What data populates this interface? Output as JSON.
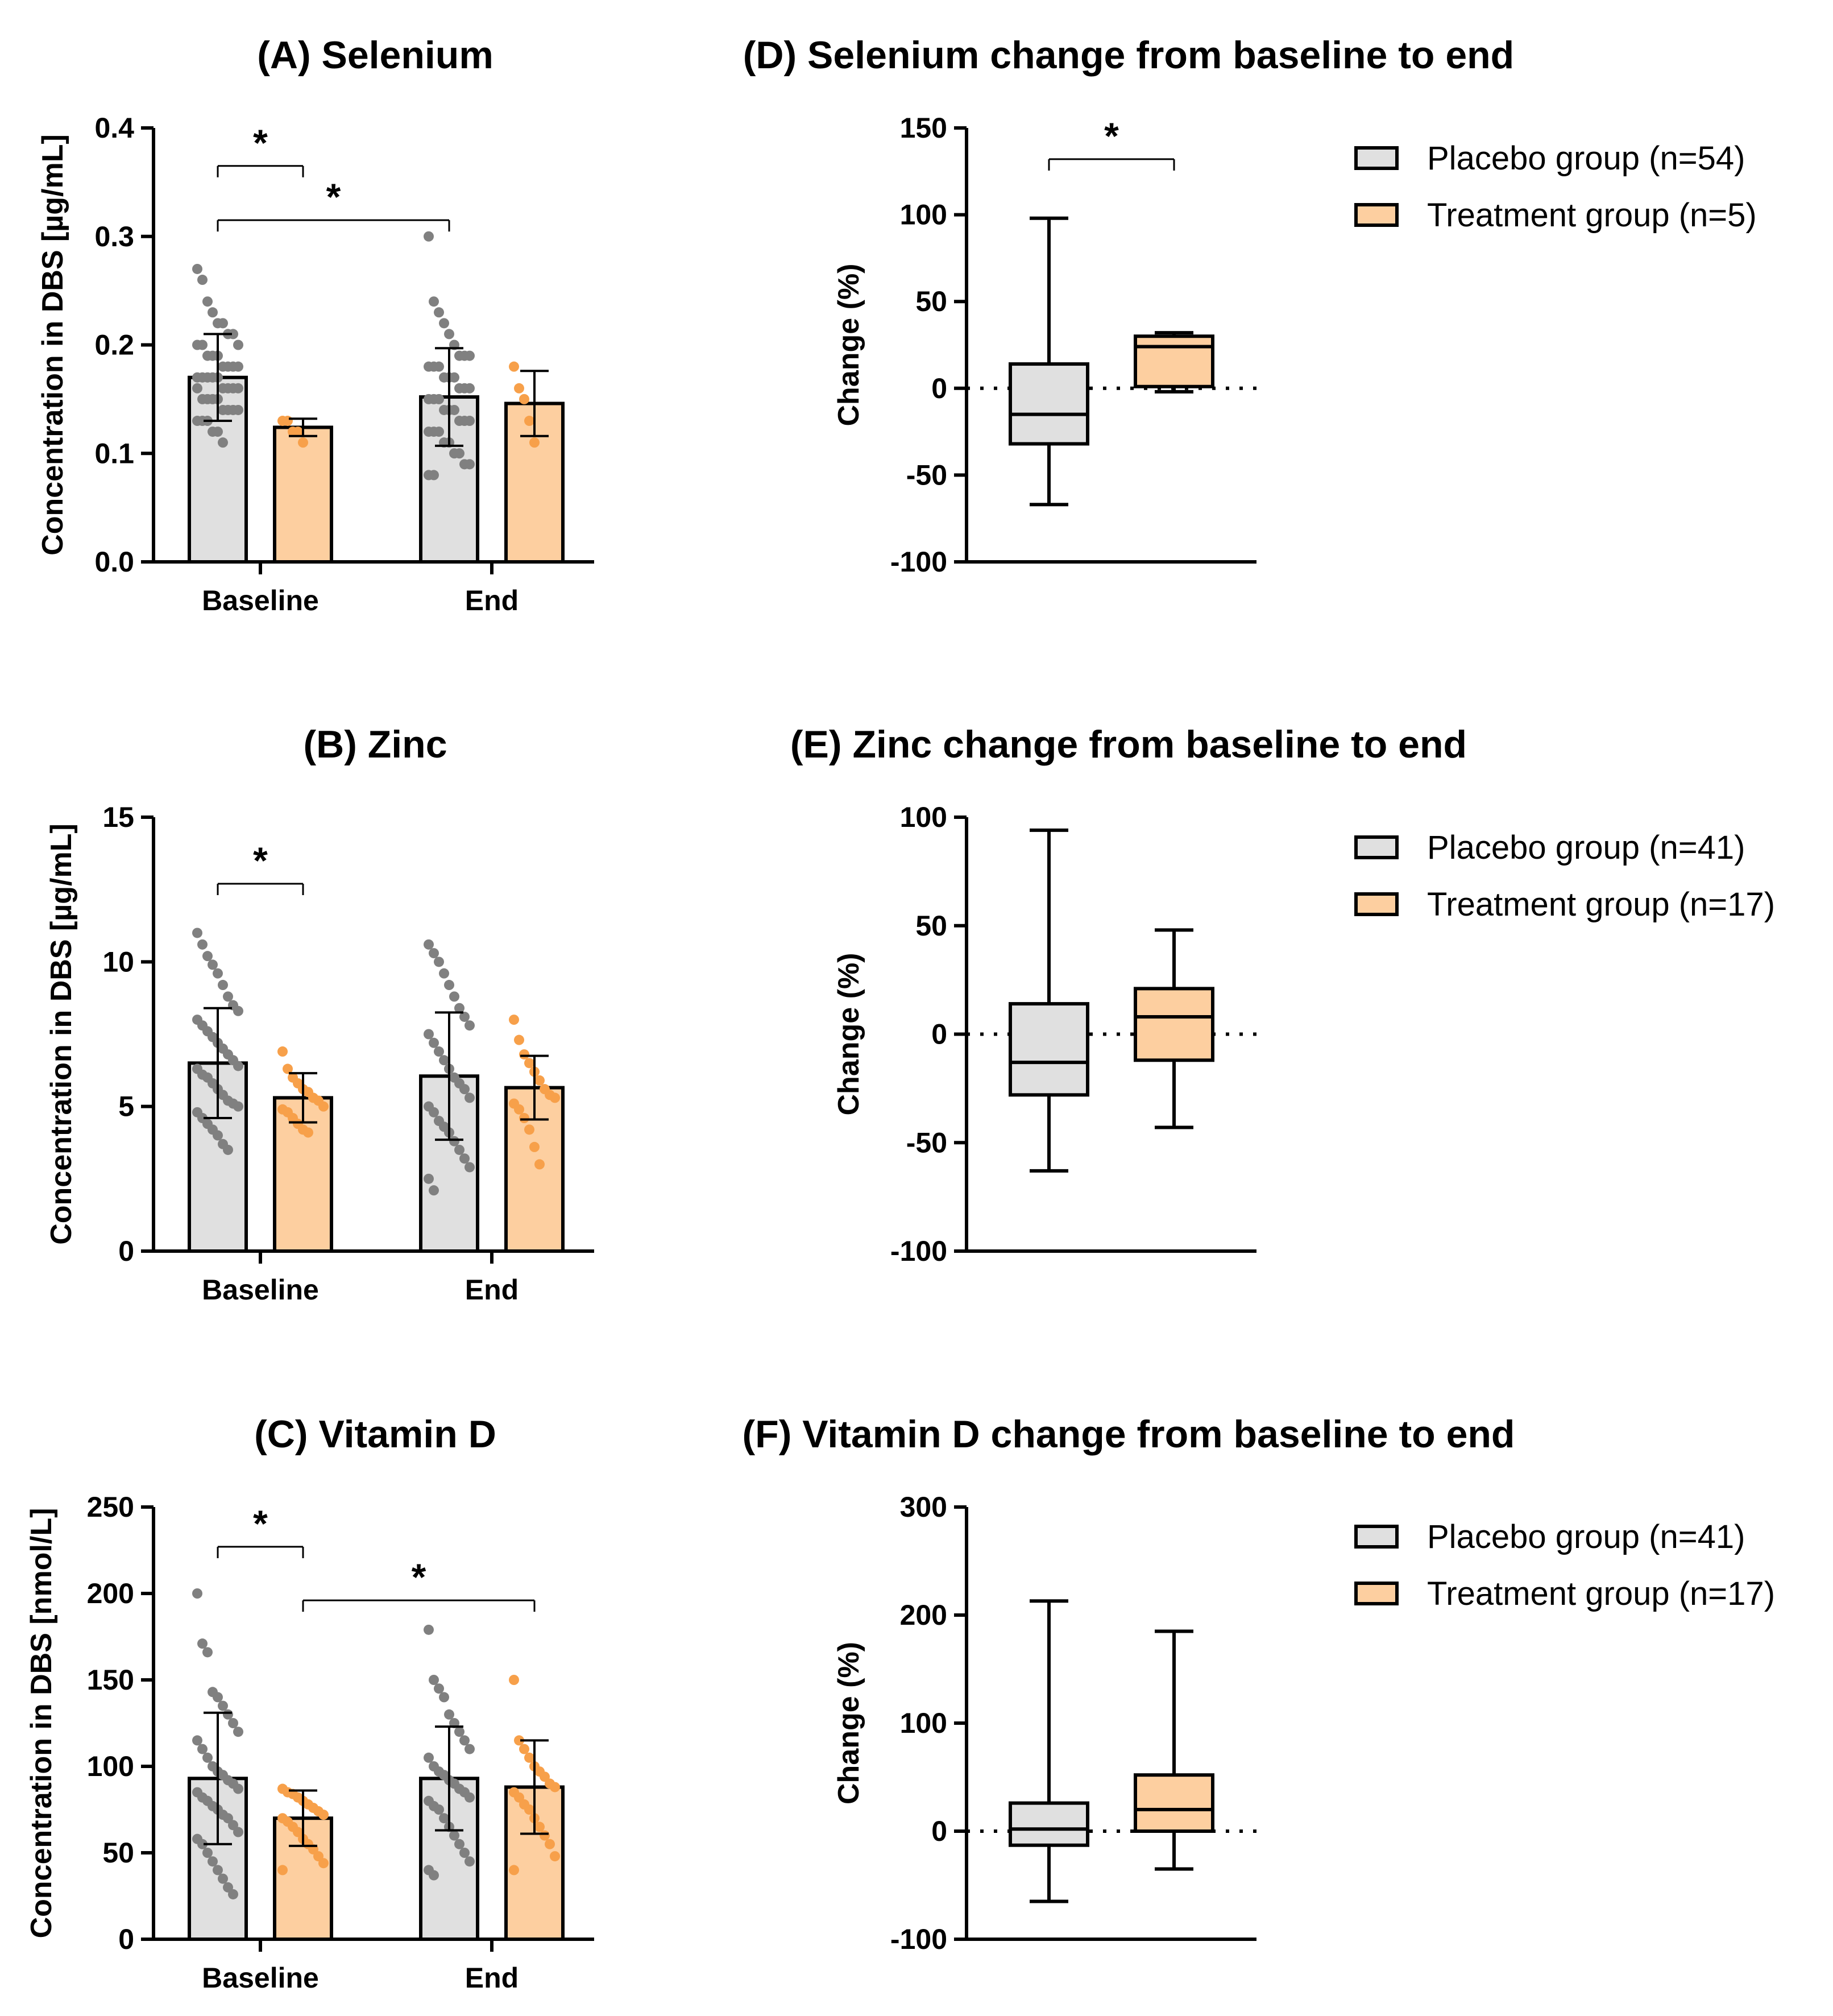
{
  "colors": {
    "placebo": "#e0e0e0",
    "treatment": "#fdcfa0",
    "placebo_dot": "#808080",
    "treatment_dot": "#f7a04a",
    "stroke": "#000000"
  },
  "chart_data": [
    {
      "id": "A",
      "type": "bar",
      "title": "(A) Selenium",
      "ylabel": "Concentration in  DBS [µg/mL]",
      "categories": [
        "Baseline",
        "End"
      ],
      "ylim": [
        0,
        0.4
      ],
      "yticks": [
        0.0,
        0.1,
        0.2,
        0.3,
        0.4
      ],
      "ytick_labels": [
        "0.0",
        "0.1",
        "0.2",
        "0.3",
        "0.4"
      ],
      "series": [
        {
          "name": "Placebo group",
          "values": [
            0.17,
            0.152
          ],
          "sd": [
            0.04,
            0.045
          ],
          "points": [
            [
              0.27,
              0.26,
              0.24,
              0.23,
              0.22,
              0.22,
              0.21,
              0.21,
              0.2,
              0.2,
              0.2,
              0.19,
              0.19,
              0.19,
              0.18,
              0.18,
              0.18,
              0.18,
              0.17,
              0.17,
              0.17,
              0.17,
              0.17,
              0.16,
              0.16,
              0.16,
              0.16,
              0.16,
              0.15,
              0.15,
              0.15,
              0.15,
              0.14,
              0.14,
              0.14,
              0.14,
              0.13,
              0.13,
              0.13,
              0.12,
              0.12,
              0.11
            ],
            [
              0.3,
              0.24,
              0.23,
              0.22,
              0.21,
              0.2,
              0.19,
              0.19,
              0.19,
              0.18,
              0.18,
              0.18,
              0.17,
              0.17,
              0.17,
              0.16,
              0.16,
              0.16,
              0.15,
              0.15,
              0.15,
              0.14,
              0.14,
              0.14,
              0.13,
              0.13,
              0.13,
              0.12,
              0.12,
              0.12,
              0.11,
              0.11,
              0.1,
              0.1,
              0.09,
              0.09,
              0.08,
              0.08
            ]
          ]
        },
        {
          "name": "Treatment group",
          "values": [
            0.124,
            0.146
          ],
          "sd": [
            0.008,
            0.03
          ],
          "points": [
            [
              0.13,
              0.13,
              0.12,
              0.12,
              0.11
            ],
            [
              0.18,
              0.16,
              0.15,
              0.13,
              0.11
            ]
          ]
        }
      ],
      "significance": [
        {
          "label": "*",
          "from": [
            0,
            0
          ],
          "to": [
            0,
            1
          ],
          "y": 0.365
        },
        {
          "label": "*",
          "from": [
            0,
            0
          ],
          "to": [
            1,
            0
          ],
          "y": 0.315
        }
      ]
    },
    {
      "id": "B",
      "type": "bar",
      "title": "(B) Zinc",
      "ylabel": "Concentration in  DBS [µg/mL]",
      "categories": [
        "Baseline",
        "End"
      ],
      "ylim": [
        0,
        15
      ],
      "yticks": [
        0,
        5,
        10,
        15
      ],
      "ytick_labels": [
        "0",
        "5",
        "10",
        "15"
      ],
      "series": [
        {
          "name": "Placebo group",
          "values": [
            6.5,
            6.05
          ],
          "sd": [
            1.9,
            2.2
          ],
          "points": [
            [
              11,
              10.6,
              10.2,
              9.9,
              9.6,
              9.2,
              8.8,
              8.5,
              8.3,
              8,
              7.8,
              7.6,
              7.4,
              7.2,
              7,
              6.8,
              6.6,
              6.4,
              6.3,
              6.1,
              6,
              5.8,
              5.6,
              5.4,
              5.2,
              5.1,
              5,
              4.8,
              4.6,
              4.4,
              4.2,
              4,
              3.7,
              3.5
            ],
            [
              10.6,
              10.3,
              10,
              9.6,
              9.2,
              8.8,
              8.4,
              8.1,
              7.8,
              7.5,
              7.2,
              6.9,
              6.6,
              6.3,
              6,
              5.8,
              5.6,
              5.3,
              5,
              4.8,
              4.5,
              4.3,
              4.1,
              3.8,
              3.5,
              3.2,
              2.9,
              2.5,
              2.1
            ]
          ]
        },
        {
          "name": "Treatment group",
          "values": [
            5.3,
            5.65
          ],
          "sd": [
            0.85,
            1.1
          ],
          "points": [
            [
              6.9,
              6.3,
              6,
              5.8,
              5.6,
              5.5,
              5.3,
              5.2,
              5,
              4.9,
              4.8,
              4.6,
              4.4,
              4.2,
              4.1
            ],
            [
              8,
              7.3,
              6.8,
              6.5,
              6.2,
              5.9,
              5.6,
              5.4,
              5.3,
              5.1,
              4.9,
              4.6,
              4.2,
              3.6,
              3
            ]
          ]
        }
      ],
      "significance": [
        {
          "label": "*",
          "from": [
            0,
            0
          ],
          "to": [
            0,
            1
          ],
          "y": 12.7
        }
      ]
    },
    {
      "id": "C",
      "type": "bar",
      "title": "(C) Vitamin D",
      "ylabel": "Concentration in  DBS [nmol/L]",
      "categories": [
        "Baseline",
        "End"
      ],
      "ylim": [
        0,
        250
      ],
      "yticks": [
        0,
        50,
        100,
        150,
        200,
        250
      ],
      "ytick_labels": [
        "0",
        "50",
        "100",
        "150",
        "200",
        "250"
      ],
      "series": [
        {
          "name": "Placebo group",
          "values": [
            93,
            93
          ],
          "sd": [
            38,
            30
          ],
          "points": [
            [
              200,
              171,
              166,
              143,
              140,
              135,
              130,
              125,
              120,
              115,
              110,
              105,
              100,
              97,
              95,
              92,
              90,
              87,
              85,
              82,
              80,
              77,
              75,
              72,
              70,
              66,
              62,
              58,
              55,
              50,
              45,
              40,
              35,
              30,
              26
            ],
            [
              179,
              150,
              145,
              140,
              130,
              125,
              120,
              115,
              110,
              105,
              100,
              97,
              95,
              92,
              90,
              87,
              85,
              82,
              80,
              77,
              75,
              70,
              65,
              60,
              55,
              50,
              45,
              40,
              37
            ]
          ]
        },
        {
          "name": "Treatment group",
          "values": [
            70,
            88
          ],
          "sd": [
            16,
            27
          ],
          "points": [
            [
              87,
              85,
              84,
              82,
              80,
              78,
              76,
              74,
              72,
              70,
              68,
              65,
              62,
              58,
              55,
              52,
              48,
              44,
              40
            ],
            [
              150,
              115,
              110,
              105,
              100,
              97,
              94,
              90,
              88,
              85,
              82,
              78,
              75,
              70,
              65,
              60,
              55,
              48,
              40
            ]
          ]
        }
      ],
      "significance": [
        {
          "label": "*",
          "from": [
            0,
            0
          ],
          "to": [
            0,
            1
          ],
          "y": 227
        },
        {
          "label": "*",
          "from": [
            0,
            1
          ],
          "to": [
            1,
            1
          ],
          "y": 196
        }
      ]
    },
    {
      "id": "D",
      "type": "box",
      "title": "(D) Selenium change from baseline to end",
      "ylabel": "Change (%)",
      "ylim": [
        -100,
        150
      ],
      "yticks": [
        -100,
        -50,
        0,
        50,
        100,
        150
      ],
      "ytick_labels": [
        "-100",
        "-50",
        "0",
        "50",
        "100",
        "150"
      ],
      "boxes": [
        {
          "name": "Placebo group",
          "min": -67,
          "q1": -32,
          "median": -15,
          "q3": 14,
          "max": 98
        },
        {
          "name": "Treatment group",
          "min": -2,
          "q1": 1,
          "median": 24,
          "q3": 30,
          "max": 32
        }
      ],
      "legend": [
        "Placebo group (n=54)",
        "Treatment group (n=5)"
      ],
      "significance": [
        {
          "label": "*",
          "y": 132
        }
      ]
    },
    {
      "id": "E",
      "type": "box",
      "title": "(E) Zinc change from baseline to end",
      "ylabel": "Change (%)",
      "ylim": [
        -100,
        100
      ],
      "yticks": [
        -100,
        -50,
        0,
        50,
        100
      ],
      "ytick_labels": [
        "-100",
        "-50",
        "0",
        "50",
        "100"
      ],
      "boxes": [
        {
          "name": "Placebo group",
          "min": -63,
          "q1": -28,
          "median": -13,
          "q3": 14,
          "max": 94
        },
        {
          "name": "Treatment group",
          "min": -43,
          "q1": -12,
          "median": 8,
          "q3": 21,
          "max": 48
        }
      ],
      "legend": [
        "Placebo group (n=41)",
        "Treatment group (n=17)"
      ],
      "significance": []
    },
    {
      "id": "F",
      "type": "box",
      "title": "(F) Vitamin D change from baseline to end",
      "ylabel": "Change (%)",
      "ylim": [
        -100,
        300
      ],
      "yticks": [
        -100,
        0,
        100,
        200,
        300
      ],
      "ytick_labels": [
        "-100",
        "0",
        "100",
        "200",
        "300"
      ],
      "boxes": [
        {
          "name": "Placebo group",
          "min": -65,
          "q1": -13,
          "median": 2,
          "q3": 26,
          "max": 213
        },
        {
          "name": "Treatment group",
          "min": -35,
          "q1": 0,
          "median": 20,
          "q3": 52,
          "max": 185
        }
      ],
      "legend": [
        "Placebo group (n=41)",
        "Treatment group (n=17)"
      ],
      "significance": []
    }
  ]
}
